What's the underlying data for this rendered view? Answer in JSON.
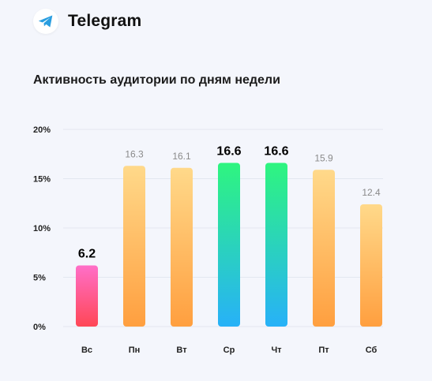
{
  "header": {
    "app_name": "Telegram",
    "logo_icon": "telegram-plane-icon",
    "logo_color": "#2a9ee0"
  },
  "chart_data": {
    "type": "bar",
    "title": "Активность аудитории по дням недели",
    "categories": [
      "Вс",
      "Пн",
      "Вт",
      "Ср",
      "Чт",
      "Пт",
      "Сб"
    ],
    "values": [
      6.2,
      16.3,
      16.1,
      16.6,
      16.6,
      15.9,
      12.4
    ],
    "value_labels": [
      "6.2",
      "16.3",
      "16.1",
      "16.6",
      "16.6",
      "15.9",
      "12.4"
    ],
    "highlight": [
      "min",
      "normal",
      "normal",
      "max",
      "max",
      "normal",
      "normal"
    ],
    "ylim": [
      0,
      20
    ],
    "yticks": [
      0,
      5,
      10,
      15,
      20
    ],
    "ytick_labels": [
      "0%",
      "5%",
      "10%",
      "15%",
      "20%"
    ],
    "grid": true,
    "xlabel": "",
    "ylabel": "",
    "colors": {
      "normal": [
        "#ffd98a",
        "#ff9f3f"
      ],
      "max": [
        "#2ef57f",
        "#27b1f8"
      ],
      "min": [
        "#ff6fc8",
        "#ff4756"
      ],
      "label_normal": "#8a8a8a",
      "label_highlight": "#000000"
    }
  }
}
